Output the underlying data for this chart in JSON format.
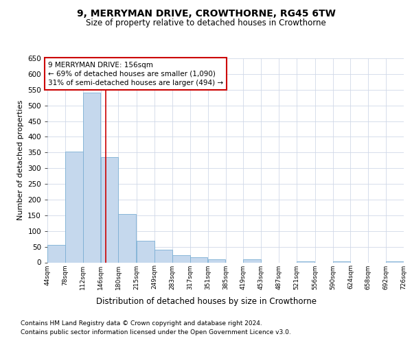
{
  "title": "9, MERRYMAN DRIVE, CROWTHORNE, RG45 6TW",
  "subtitle": "Size of property relative to detached houses in Crowthorne",
  "xlabel": "Distribution of detached houses by size in Crowthorne",
  "ylabel": "Number of detached properties",
  "bar_color": "#c5d8ed",
  "bar_edge_color": "#7bafd4",
  "background_color": "#ffffff",
  "grid_color": "#d0d8e8",
  "annotation_line_color": "#cc0000",
  "annotation_box_color": "#cc0000",
  "annotation_text": "9 MERRYMAN DRIVE: 156sqm\n← 69% of detached houses are smaller (1,090)\n31% of semi-detached houses are larger (494) →",
  "property_size": 156,
  "bin_edges": [
    44,
    78,
    112,
    146,
    180,
    215,
    249,
    283,
    317,
    351,
    385,
    419,
    453,
    487,
    521,
    556,
    590,
    624,
    658,
    692,
    726
  ],
  "bin_labels": [
    "44sqm",
    "78sqm",
    "112sqm",
    "146sqm",
    "180sqm",
    "215sqm",
    "249sqm",
    "283sqm",
    "317sqm",
    "351sqm",
    "385sqm",
    "419sqm",
    "453sqm",
    "487sqm",
    "521sqm",
    "556sqm",
    "590sqm",
    "624sqm",
    "658sqm",
    "692sqm",
    "726sqm"
  ],
  "counts": [
    55,
    352,
    540,
    335,
    155,
    68,
    40,
    23,
    16,
    9,
    0,
    9,
    0,
    0,
    4,
    0,
    4,
    0,
    0,
    4
  ],
  "ylim": [
    0,
    650
  ],
  "yticks": [
    0,
    50,
    100,
    150,
    200,
    250,
    300,
    350,
    400,
    450,
    500,
    550,
    600,
    650
  ],
  "footer_line1": "Contains HM Land Registry data © Crown copyright and database right 2024.",
  "footer_line2": "Contains public sector information licensed under the Open Government Licence v3.0."
}
